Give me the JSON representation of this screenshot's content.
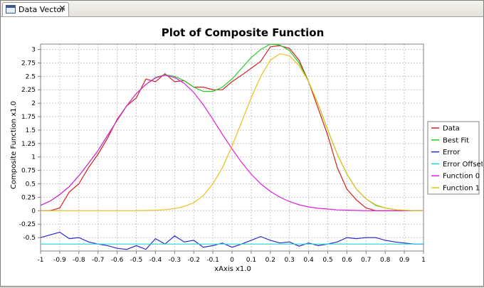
{
  "tab": {
    "label": "Data Vector",
    "close_glyph": "✕"
  },
  "chart_data": {
    "type": "line",
    "title": "Plot of Composite Function",
    "xlabel": "xAxis x1.0",
    "ylabel": "Composite Function x1.0",
    "xlim": [
      -1,
      1
    ],
    "ylim": [
      -0.75,
      3.1
    ],
    "x_ticks": [
      "-1",
      "-0.9",
      "-0.8",
      "-0.7",
      "-0.6",
      "-0.5",
      "-0.4",
      "-0.3",
      "-0.2",
      "-0.1",
      "0",
      "0.1",
      "0.2",
      "0.3",
      "0.4",
      "0.5",
      "0.6",
      "0.7",
      "0.8",
      "0.9",
      "1"
    ],
    "y_ticks": [
      "-0.5",
      "-0.25",
      "0",
      "0.25",
      "0.5",
      "0.75",
      "1",
      "1.25",
      "1.5",
      "1.75",
      "2",
      "2.25",
      "2.5",
      "2.75",
      "3"
    ],
    "grid": true,
    "legend_position": "right",
    "series": [
      {
        "name": "Data",
        "color": "#d42020",
        "x": [
          -1,
          -0.95,
          -0.9,
          -0.85,
          -0.8,
          -0.75,
          -0.7,
          -0.65,
          -0.6,
          -0.55,
          -0.5,
          -0.45,
          -0.4,
          -0.35,
          -0.3,
          -0.25,
          -0.2,
          -0.15,
          -0.1,
          -0.05,
          0,
          0.05,
          0.1,
          0.15,
          0.2,
          0.25,
          0.3,
          0.35,
          0.4,
          0.45,
          0.5,
          0.55,
          0.6,
          0.65,
          0.7,
          0.75,
          0.8,
          0.85,
          0.9,
          0.95,
          1
        ],
        "values": [
          0,
          0,
          0.05,
          0.35,
          0.5,
          0.8,
          1.05,
          1.35,
          1.7,
          1.95,
          2.1,
          2.45,
          2.4,
          2.55,
          2.4,
          2.42,
          2.3,
          2.3,
          2.25,
          2.25,
          2.4,
          2.52,
          2.65,
          2.78,
          3.05,
          3.07,
          3.02,
          2.8,
          2.4,
          1.9,
          1.4,
          0.8,
          0.4,
          0.2,
          0.05,
          0,
          0,
          0,
          0,
          0,
          0
        ]
      },
      {
        "name": "Best Fit",
        "color": "#22cc22",
        "x": [
          -1,
          -0.95,
          -0.9,
          -0.85,
          -0.8,
          -0.75,
          -0.7,
          -0.65,
          -0.6,
          -0.55,
          -0.5,
          -0.45,
          -0.4,
          -0.35,
          -0.3,
          -0.25,
          -0.2,
          -0.15,
          -0.1,
          -0.05,
          0,
          0.05,
          0.1,
          0.15,
          0.2,
          0.25,
          0.3,
          0.35,
          0.4,
          0.45,
          0.5,
          0.55,
          0.6,
          0.65,
          0.7,
          0.75,
          0.8,
          0.85,
          0.9,
          0.95,
          1
        ],
        "values": [
          0.1,
          0.18,
          0.3,
          0.45,
          0.65,
          0.88,
          1.12,
          1.4,
          1.68,
          1.95,
          2.18,
          2.35,
          2.48,
          2.53,
          2.5,
          2.42,
          2.3,
          2.22,
          2.22,
          2.3,
          2.45,
          2.65,
          2.85,
          3.0,
          3.1,
          3.08,
          2.98,
          2.75,
          2.4,
          1.98,
          1.5,
          1.05,
          0.68,
          0.4,
          0.22,
          0.1,
          0.05,
          0.02,
          0.01,
          0,
          0
        ]
      },
      {
        "name": "Error",
        "color": "#2a2ad0",
        "x": [
          -1,
          -0.95,
          -0.9,
          -0.85,
          -0.8,
          -0.75,
          -0.7,
          -0.65,
          -0.6,
          -0.55,
          -0.5,
          -0.45,
          -0.4,
          -0.35,
          -0.3,
          -0.25,
          -0.2,
          -0.15,
          -0.1,
          -0.05,
          0,
          0.05,
          0.1,
          0.15,
          0.2,
          0.25,
          0.3,
          0.35,
          0.4,
          0.45,
          0.5,
          0.55,
          0.6,
          0.65,
          0.7,
          0.75,
          0.8,
          0.85,
          0.9,
          0.95,
          1
        ],
        "values": [
          -0.5,
          -0.45,
          -0.4,
          -0.52,
          -0.5,
          -0.58,
          -0.62,
          -0.65,
          -0.7,
          -0.72,
          -0.65,
          -0.72,
          -0.52,
          -0.62,
          -0.47,
          -0.58,
          -0.55,
          -0.68,
          -0.65,
          -0.6,
          -0.68,
          -0.62,
          -0.55,
          -0.48,
          -0.55,
          -0.6,
          -0.58,
          -0.66,
          -0.6,
          -0.65,
          -0.62,
          -0.58,
          -0.5,
          -0.52,
          -0.5,
          -0.5,
          -0.55,
          -0.58,
          -0.6,
          -0.62,
          -0.62
        ]
      },
      {
        "name": "Error Offset",
        "color": "#20d4d4",
        "x": [
          -1,
          1
        ],
        "values": [
          -0.62,
          -0.62
        ]
      },
      {
        "name": "Function 0",
        "color": "#e020e0",
        "x": [
          -1,
          -0.95,
          -0.9,
          -0.85,
          -0.8,
          -0.75,
          -0.7,
          -0.65,
          -0.6,
          -0.55,
          -0.5,
          -0.45,
          -0.4,
          -0.35,
          -0.3,
          -0.25,
          -0.2,
          -0.15,
          -0.1,
          -0.05,
          0,
          0.05,
          0.1,
          0.15,
          0.2,
          0.25,
          0.3,
          0.35,
          0.4,
          0.45,
          0.5,
          0.55,
          0.6,
          0.65,
          0.7,
          0.75,
          0.8,
          0.85,
          0.9,
          0.95,
          1
        ],
        "values": [
          0.1,
          0.18,
          0.3,
          0.45,
          0.65,
          0.88,
          1.12,
          1.4,
          1.68,
          1.95,
          2.18,
          2.35,
          2.47,
          2.52,
          2.48,
          2.37,
          2.2,
          1.97,
          1.7,
          1.42,
          1.15,
          0.9,
          0.68,
          0.5,
          0.36,
          0.25,
          0.17,
          0.11,
          0.07,
          0.045,
          0.03,
          0.015,
          0.01,
          0.005,
          0,
          0,
          0,
          0,
          0,
          0,
          0
        ]
      },
      {
        "name": "Function 1",
        "color": "#e8c020",
        "x": [
          -1,
          -0.5,
          -0.4,
          -0.35,
          -0.3,
          -0.25,
          -0.2,
          -0.15,
          -0.1,
          -0.05,
          0,
          0.05,
          0.1,
          0.15,
          0.2,
          0.25,
          0.3,
          0.35,
          0.4,
          0.45,
          0.5,
          0.55,
          0.6,
          0.65,
          0.7,
          0.75,
          0.8,
          0.85,
          0.9,
          0.95,
          1
        ],
        "values": [
          0,
          0,
          0.01,
          0.02,
          0.04,
          0.08,
          0.15,
          0.28,
          0.5,
          0.8,
          1.2,
          1.65,
          2.1,
          2.5,
          2.8,
          2.92,
          2.88,
          2.7,
          2.4,
          1.98,
          1.5,
          1.05,
          0.68,
          0.4,
          0.22,
          0.11,
          0.05,
          0.02,
          0.01,
          0,
          0
        ]
      }
    ]
  }
}
